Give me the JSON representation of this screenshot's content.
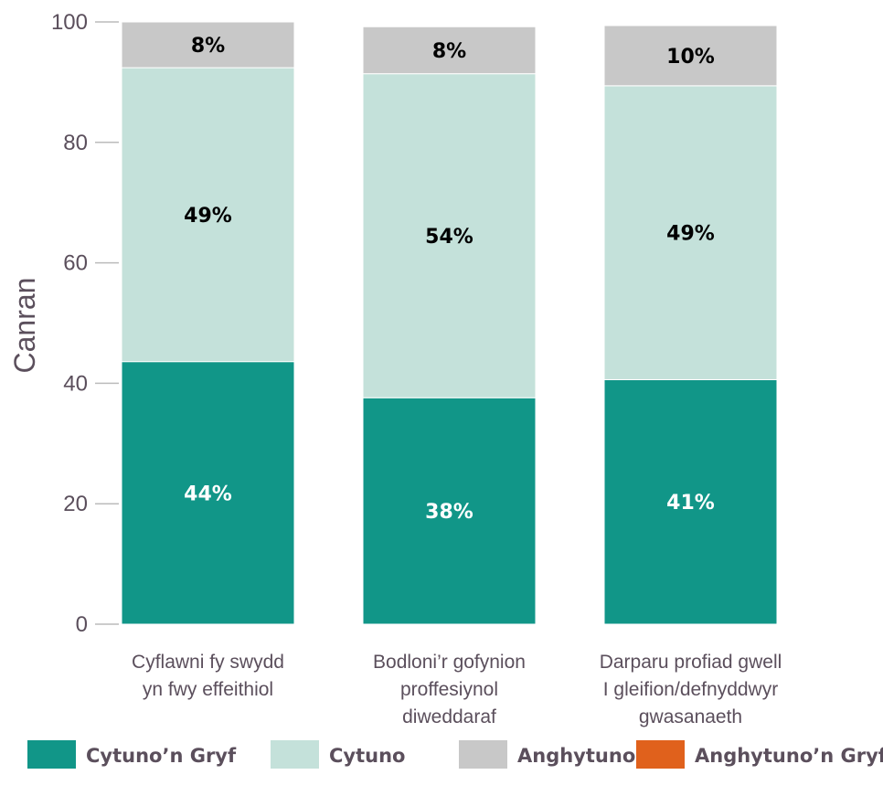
{
  "chart_data": {
    "type": "bar",
    "stacked": true,
    "ylabel": "Canran",
    "ylim": [
      0,
      100
    ],
    "yticks": [
      0,
      20,
      40,
      60,
      80,
      100
    ],
    "grid": false,
    "legend_position": "bottom",
    "categories": [
      [
        "Cyflawni fy swydd",
        "yn fwy effeithiol"
      ],
      [
        "Bodloni’r gofynion",
        "proffesiynol",
        "diweddaraf"
      ],
      [
        "Darparu profiad gwell",
        "I gleifion/defnyddwyr",
        "gwasanaeth"
      ]
    ],
    "series": [
      {
        "name": "Cytuno’n Gryf",
        "color": "#119688",
        "label_color": "#ffffff",
        "values": [
          43.6,
          37.6,
          40.6
        ],
        "labels": [
          "44%",
          "38%",
          "41%"
        ]
      },
      {
        "name": "Cytuno",
        "color": "#c4e1da",
        "label_color": "#000000",
        "values": [
          48.8,
          53.8,
          48.8
        ],
        "labels": [
          "49%",
          "54%",
          "49%"
        ]
      },
      {
        "name": "Anghytuno",
        "color": "#c8c8c8",
        "label_color": "#000000",
        "values": [
          7.6,
          7.8,
          10.0
        ],
        "labels": [
          "8%",
          "8%",
          "10%"
        ]
      },
      {
        "name": "Anghytuno’n Gryf",
        "color": "#e0611c",
        "label_color": "#ffffff",
        "values": [
          0,
          0,
          0
        ],
        "labels": [
          "",
          "",
          ""
        ]
      }
    ]
  }
}
